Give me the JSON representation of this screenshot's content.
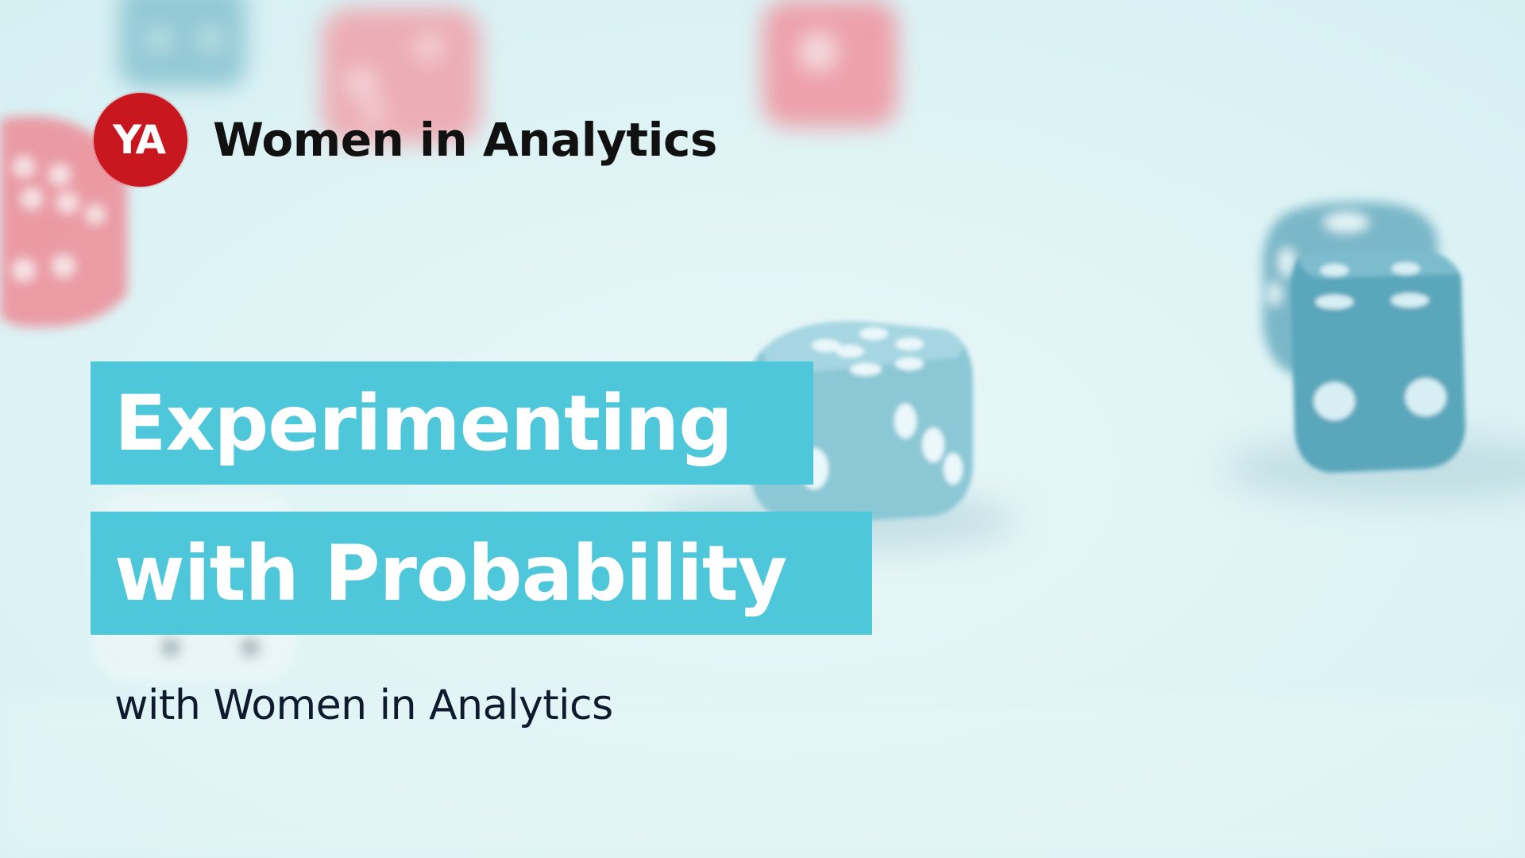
{
  "brand": {
    "logo_text": "YA",
    "name": "Women in Analytics"
  },
  "title": {
    "line1": "Experimenting",
    "line2": "with Probability"
  },
  "subtitle": "with Women in Analytics",
  "colors": {
    "background": "#dff3f5",
    "title_band": "#4fc7da",
    "title_text": "#ffffff",
    "logo_red": "#c8171e",
    "brand_text": "#111111",
    "subtitle_text": "#101a2e",
    "dice_blue": "#6fb9c9",
    "dice_red": "#ee8c97"
  },
  "icons": {
    "logo": "women-in-analytics-logo-icon",
    "background": "dice-background-icon"
  }
}
